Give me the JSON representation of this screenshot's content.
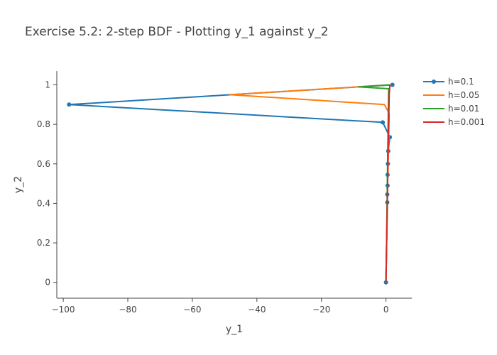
{
  "chart_data": {
    "type": "line",
    "title": "Exercise 5.2: 2-step BDF - Plotting y_1 against y_2",
    "xlabel": "y_1",
    "ylabel": "y_2",
    "xlim": [
      -102,
      8
    ],
    "ylim": [
      -0.08,
      1.07
    ],
    "xticks": [
      -100,
      -80,
      -60,
      -40,
      -20,
      0
    ],
    "xtick_labels": [
      "−100",
      "−80",
      "−60",
      "−40",
      "−20",
      "0"
    ],
    "yticks": [
      0,
      0.2,
      0.4,
      0.6,
      0.8,
      1
    ],
    "ytick_labels": [
      "0",
      "0.2",
      "0.4",
      "0.6",
      "0.8",
      "1"
    ],
    "grid": false,
    "legend_position": "top-right",
    "series": [
      {
        "name": "h=0.1",
        "color": "#1f77b4",
        "markers": true,
        "x": [
          2,
          -98.2,
          -1,
          1.2,
          0.7,
          0.6,
          0.5,
          0.5,
          0.4,
          0.4,
          0
        ],
        "y": [
          1,
          0.9,
          0.81,
          0.735,
          0.665,
          0.6,
          0.545,
          0.49,
          0.445,
          0.405,
          0
        ]
      },
      {
        "name": "h=0.05",
        "color": "#ff7f0e",
        "markers": false,
        "x": [
          1.5,
          -48.3,
          -0.5,
          1,
          0.8,
          0.5,
          0.3,
          0
        ],
        "y": [
          1,
          0.95,
          0.9,
          0.855,
          0.7,
          0.5,
          0.3,
          0
        ]
      },
      {
        "name": "h=0.01",
        "color": "#2ca02c",
        "markers": false,
        "x": [
          1.3,
          -8.5,
          0.9,
          0.8,
          0.5,
          0.2,
          0
        ],
        "y": [
          1,
          0.99,
          0.98,
          0.97,
          0.6,
          0.2,
          0
        ]
      },
      {
        "name": "h=0.001",
        "color": "#d62728",
        "markers": false,
        "x": [
          1.2,
          1.0,
          0.7,
          0.4,
          0.1,
          0
        ],
        "y": [
          1,
          0.95,
          0.7,
          0.4,
          0.1,
          0
        ]
      }
    ]
  }
}
